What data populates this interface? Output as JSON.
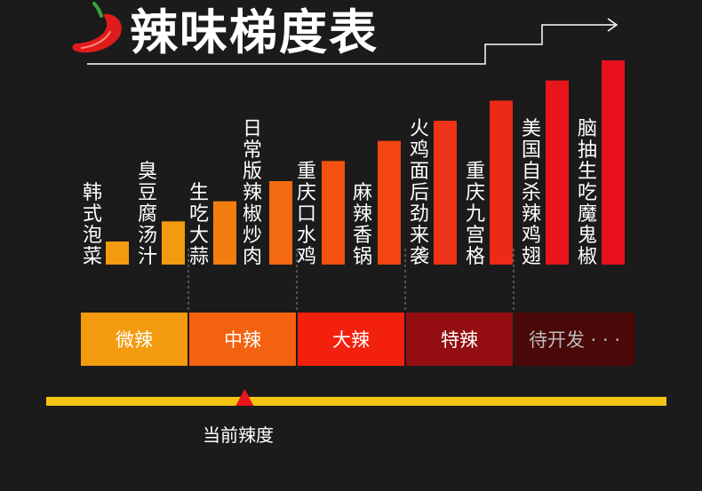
{
  "title": "辣味梯度表",
  "chart_data": {
    "type": "bar",
    "categories": [
      "韩式泡菜",
      "臭豆腐汤汁",
      "生吃大蒜",
      "日常版辣椒炒肉",
      "重庆口水鸡",
      "麻辣香锅",
      "火鸡面后劲来袭",
      "重庆九宫格",
      "美国自杀辣鸡翅",
      "脑抽生吃魔鬼椒"
    ],
    "values": [
      1,
      2,
      3,
      4,
      5,
      6,
      7,
      8,
      9,
      10
    ],
    "bar_colors": [
      "#f39a10",
      "#f39a10",
      "#f37d0f",
      "#f36a10",
      "#f35210",
      "#f34512",
      "#ef3318",
      "#ec2a18",
      "#e8161c",
      "#e8121e"
    ]
  },
  "zones": [
    {
      "label": "微辣",
      "color": "#f39a0e"
    },
    {
      "label": "中辣",
      "color": "#f3620f"
    },
    {
      "label": "大辣",
      "color": "#f2200d"
    },
    {
      "label": "特辣",
      "color": "#940d10"
    },
    {
      "label": "待开发 · · ·",
      "color": "#4a0808"
    }
  ],
  "indicator": {
    "label": "当前辣度",
    "bar_color": "#f5c314",
    "marker_color": "#e8161c",
    "position_fraction": 0.32
  }
}
